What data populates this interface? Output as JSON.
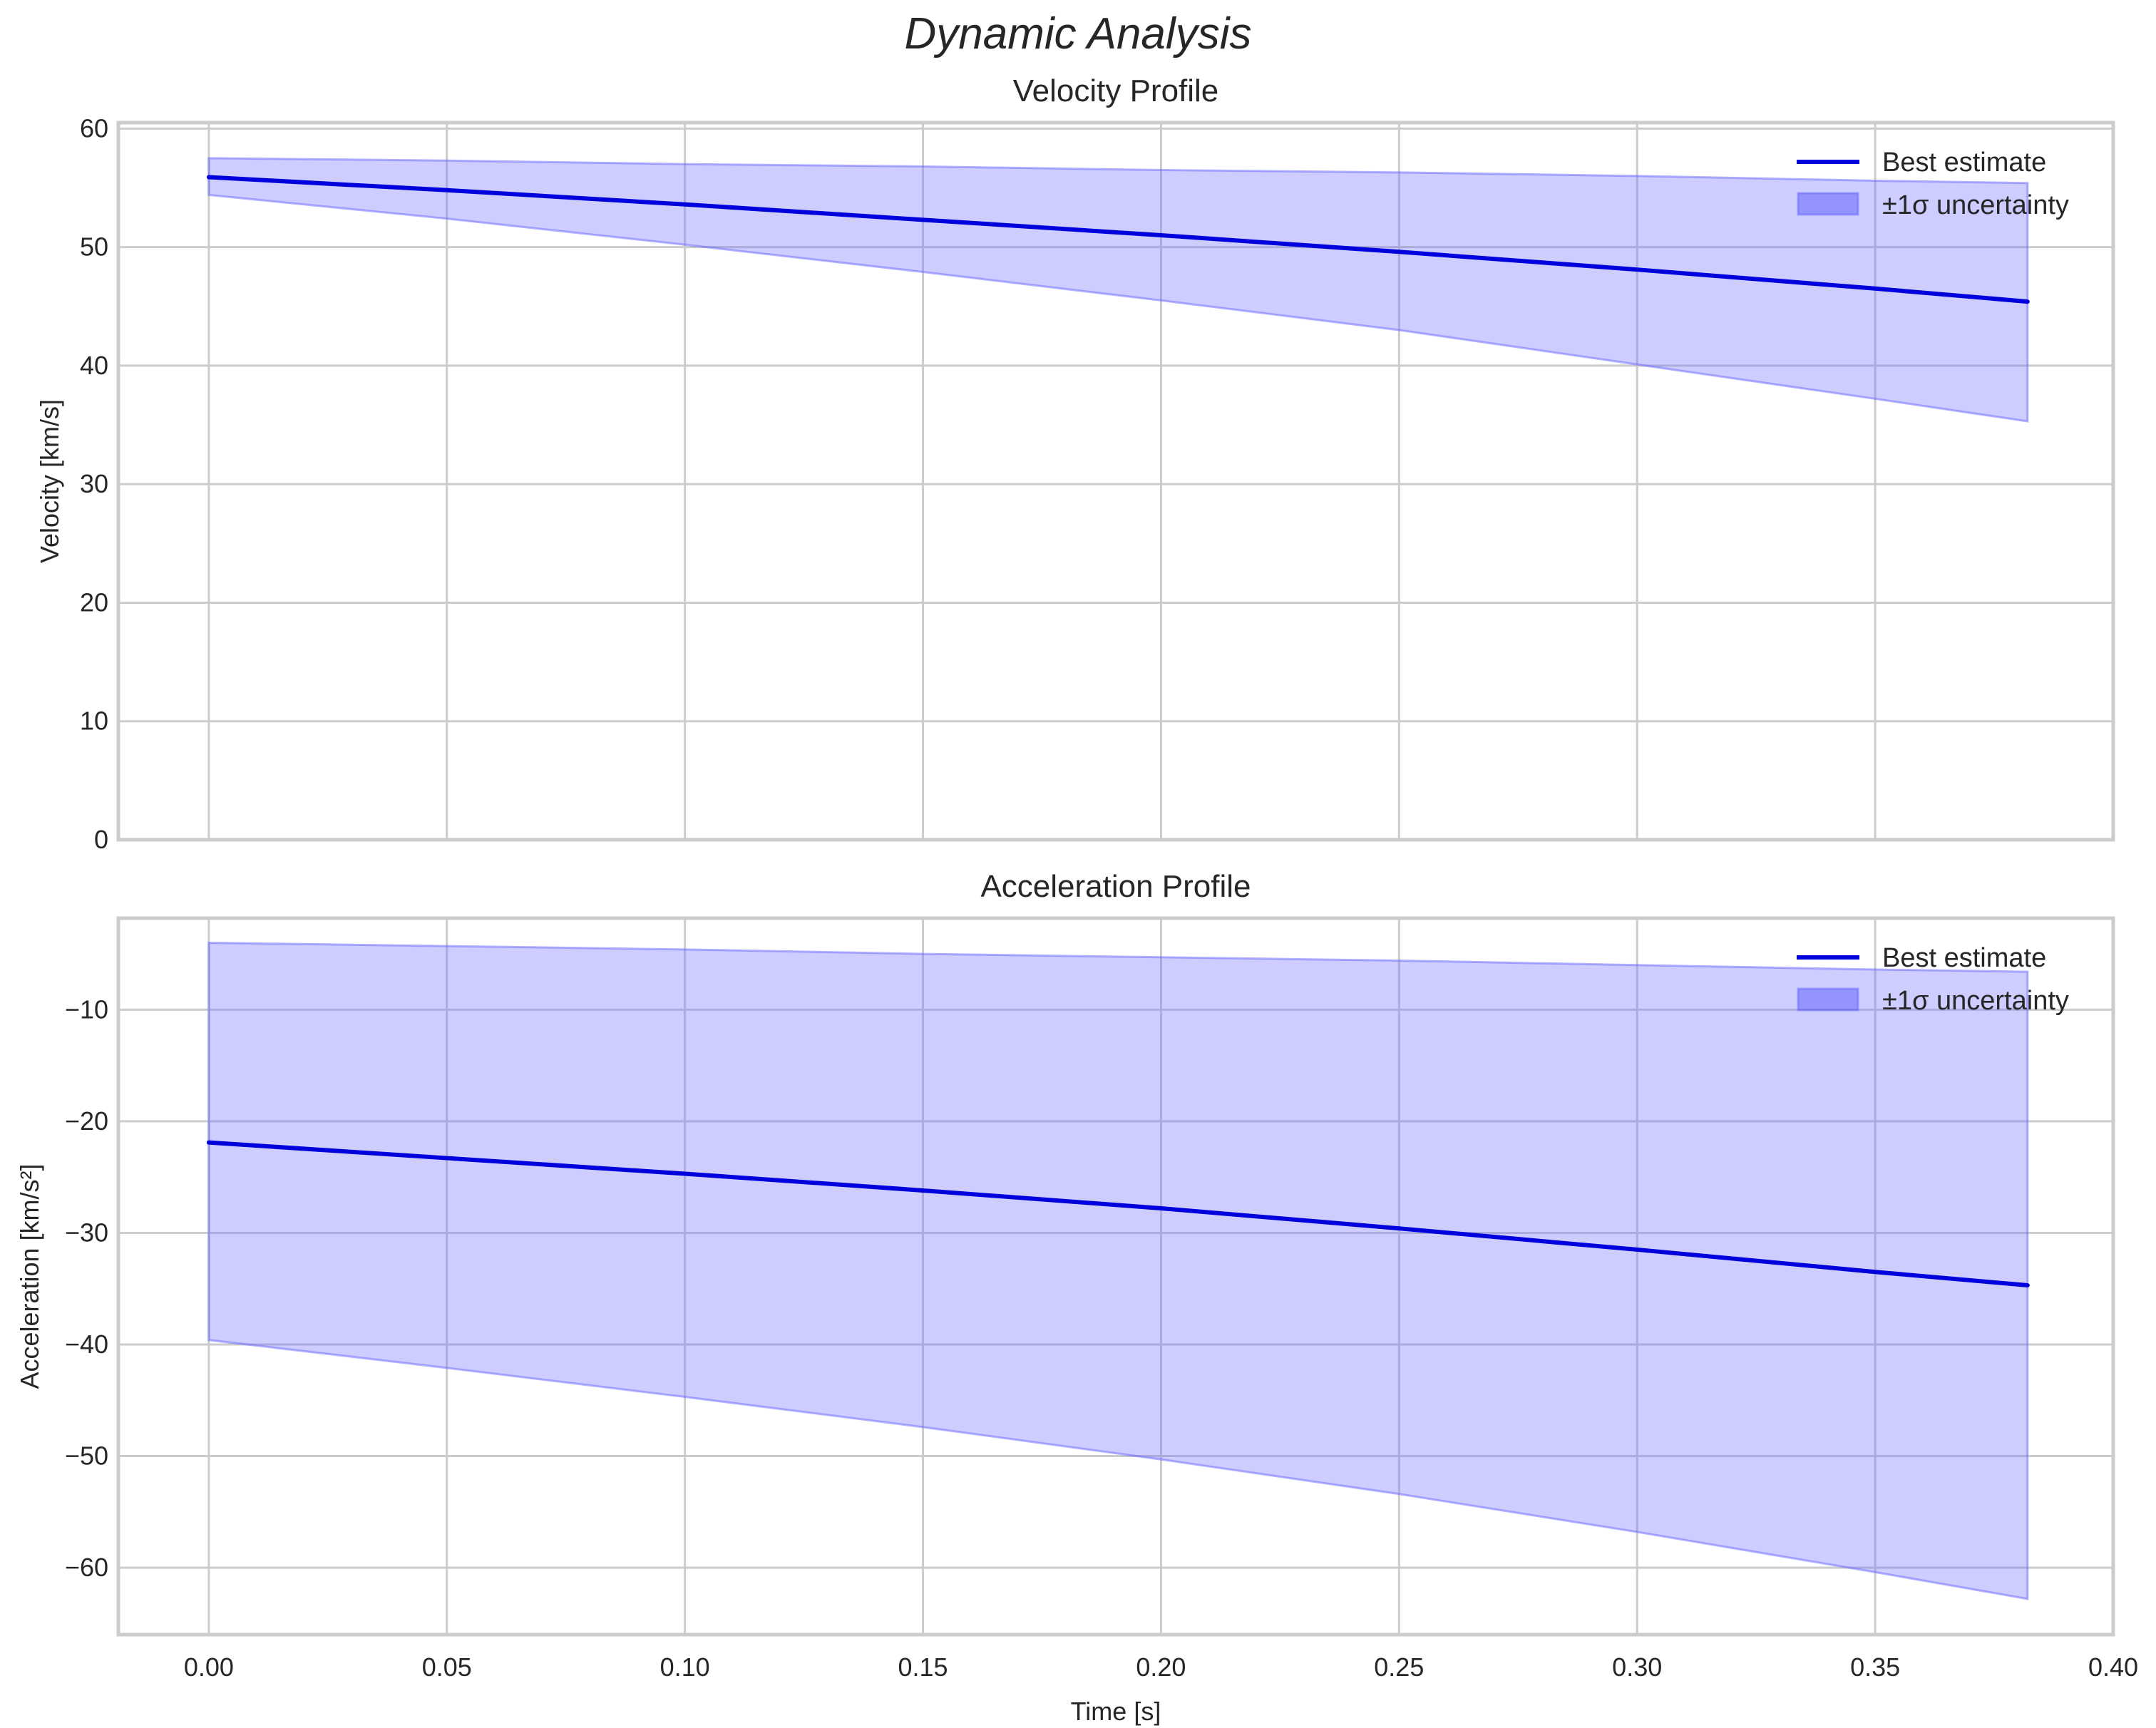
{
  "title": "Dynamic Analysis",
  "colors": {
    "line": "#0000dd",
    "band": "#6666ff",
    "grid": "#cccccc"
  },
  "chart_data": [
    {
      "type": "line",
      "title": "Velocity Profile",
      "xlabel": "",
      "ylabel": "Velocity [km/s]",
      "xlim": [
        -0.019,
        0.4
      ],
      "ylim": [
        0,
        60.5
      ],
      "yticks": [
        0,
        10,
        20,
        30,
        40,
        50,
        60
      ],
      "xticks": [
        0.0,
        0.05,
        0.1,
        0.15,
        0.2,
        0.25,
        0.3,
        0.35,
        0.4
      ],
      "grid": true,
      "legend": {
        "position": "upper right",
        "entries": [
          "Best estimate",
          "±1σ uncertainty"
        ]
      },
      "x": [
        0.0,
        0.05,
        0.1,
        0.15,
        0.2,
        0.25,
        0.3,
        0.35,
        0.382
      ],
      "series": [
        {
          "name": "Best estimate",
          "values": [
            55.9,
            54.8,
            53.6,
            52.3,
            51.0,
            49.6,
            48.1,
            46.5,
            45.4
          ]
        },
        {
          "name": "±1σ upper",
          "values": [
            57.5,
            57.3,
            57.0,
            56.8,
            56.5,
            56.3,
            56.0,
            55.6,
            55.4
          ]
        },
        {
          "name": "±1σ lower",
          "values": [
            54.4,
            52.4,
            50.2,
            47.9,
            45.5,
            43.0,
            40.1,
            37.2,
            35.3
          ]
        }
      ]
    },
    {
      "type": "line",
      "title": "Acceleration Profile",
      "xlabel": "Time [s]",
      "ylabel": "Acceleration [km/s²]",
      "xlim": [
        -0.019,
        0.4
      ],
      "ylim": [
        -66,
        -1.8
      ],
      "yticks": [
        -10,
        -20,
        -30,
        -40,
        -50,
        -60
      ],
      "xticks": [
        0.0,
        0.05,
        0.1,
        0.15,
        0.2,
        0.25,
        0.3,
        0.35,
        0.4
      ],
      "grid": true,
      "legend": {
        "position": "upper right",
        "entries": [
          "Best estimate",
          "±1σ uncertainty"
        ]
      },
      "x": [
        0.0,
        0.05,
        0.1,
        0.15,
        0.2,
        0.25,
        0.3,
        0.35,
        0.382
      ],
      "series": [
        {
          "name": "Best estimate",
          "values": [
            -21.9,
            -23.3,
            -24.7,
            -26.2,
            -27.8,
            -29.6,
            -31.5,
            -33.5,
            -34.7
          ]
        },
        {
          "name": "±1σ upper",
          "values": [
            -4.0,
            -4.3,
            -4.6,
            -5.0,
            -5.3,
            -5.6,
            -6.0,
            -6.4,
            -6.6
          ]
        },
        {
          "name": "±1σ lower",
          "values": [
            -39.6,
            -42.1,
            -44.7,
            -47.4,
            -50.3,
            -53.4,
            -56.8,
            -60.4,
            -62.8
          ]
        }
      ]
    }
  ]
}
